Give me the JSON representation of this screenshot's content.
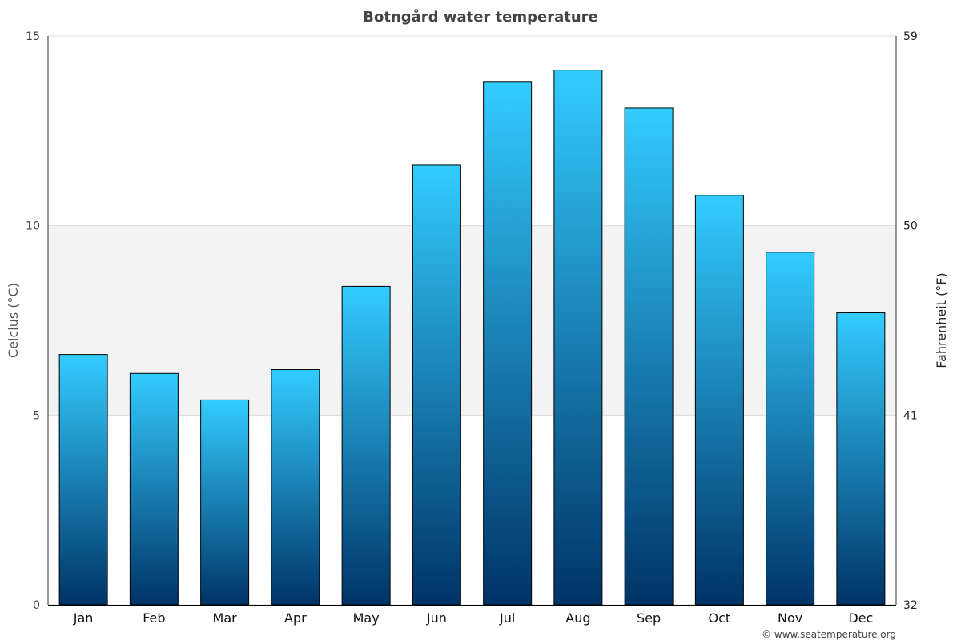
{
  "chart_data": {
    "type": "bar",
    "title": "Botngård water temperature",
    "ylabel": "Celcius (°C)",
    "ylabel_right": "Fahrenheit (°F)",
    "categories": [
      "Jan",
      "Feb",
      "Mar",
      "Apr",
      "May",
      "Jun",
      "Jul",
      "Aug",
      "Sep",
      "Oct",
      "Nov",
      "Dec"
    ],
    "values": [
      6.6,
      6.1,
      5.4,
      6.2,
      8.4,
      11.6,
      13.8,
      14.1,
      13.1,
      10.8,
      9.3,
      7.7
    ],
    "ylim": [
      0,
      15
    ],
    "yticks": [
      "0",
      "5",
      "10",
      "15"
    ],
    "yticks_right": [
      "32",
      "41",
      "50",
      "59"
    ],
    "shaded_band": [
      5,
      10
    ],
    "grid": true,
    "colors": {
      "bar_top": "#33ccff",
      "bar_bottom": "#003366",
      "band": "#f3f3f3",
      "title": "#444444"
    }
  },
  "credit": "© www.seatemperature.org"
}
